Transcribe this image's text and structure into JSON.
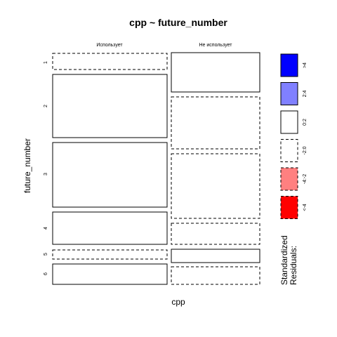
{
  "chart_data": {
    "type": "mosaic",
    "title": "cpp ~ future_number",
    "xlabel": "cpp",
    "ylabel": "future_number",
    "columns": [
      "Использует",
      "Не использует"
    ],
    "rows": [
      "1",
      "2",
      "3",
      "4",
      "5",
      "6"
    ],
    "cells": [
      {
        "row": "1",
        "col": "Использует",
        "residual_class": "-2:0"
      },
      {
        "row": "1",
        "col": "Не использует",
        "residual_class": "0:2"
      },
      {
        "row": "2",
        "col": "Использует",
        "residual_class": "0:2"
      },
      {
        "row": "2",
        "col": "Не использует",
        "residual_class": "-2:0"
      },
      {
        "row": "3",
        "col": "Использует",
        "residual_class": "0:2"
      },
      {
        "row": "3",
        "col": "Не использует",
        "residual_class": "-2:0"
      },
      {
        "row": "4",
        "col": "Использует",
        "residual_class": "0:2"
      },
      {
        "row": "4",
        "col": "Не использует",
        "residual_class": "-2:0"
      },
      {
        "row": "5",
        "col": "Использует",
        "residual_class": "-2:0"
      },
      {
        "row": "5",
        "col": "Не использует",
        "residual_class": "0:2"
      },
      {
        "row": "6",
        "col": "Использует",
        "residual_class": "0:2"
      },
      {
        "row": "6",
        "col": "Не использует",
        "residual_class": "-2:0"
      }
    ],
    "legend": {
      "title_lines": [
        "Standardized",
        "Residuals:"
      ],
      "placement": "right",
      "items": [
        {
          "label": ">4",
          "color": "#0000ff",
          "dashed": false
        },
        {
          "label": "2:4",
          "color": "#8080ff",
          "dashed": false
        },
        {
          "label": "0:2",
          "color": "#ffffff",
          "dashed": false
        },
        {
          "label": "-2:0",
          "color": "#ffffff",
          "dashed": true
        },
        {
          "label": "-4:-2",
          "color": "#ff8080",
          "dashed": true
        },
        {
          "label": "<-4",
          "color": "#ff0000",
          "dashed": true
        }
      ]
    }
  }
}
